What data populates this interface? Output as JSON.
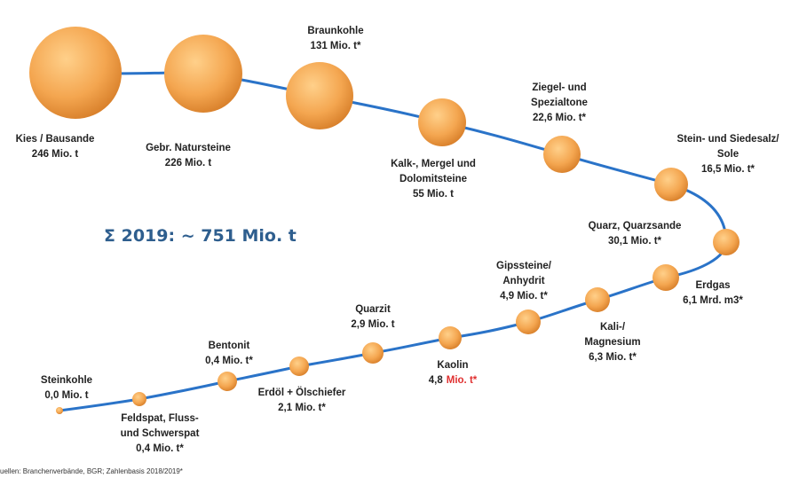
{
  "total": "Σ 2019: ~ 751 Mio. t",
  "source": "uellen: Branchenverbände, BGR; Zahlenbasis 2018/2019*",
  "nodes": [
    {
      "lines": [
        "Kies / Bausande",
        "246 Mio. t"
      ]
    },
    {
      "lines": [
        "Gebr. Natursteine",
        "226 Mio. t"
      ]
    },
    {
      "lines": [
        "Braunkohle",
        "131 Mio. t*"
      ]
    },
    {
      "lines": [
        "Kalk-, Mergel und",
        "Dolomitsteine",
        "55 Mio. t"
      ]
    },
    {
      "lines": [
        "Ziegel- und",
        "Spezialtone",
        "22,6 Mio. t*"
      ]
    },
    {
      "lines": [
        "Stein- und Siedesalz/",
        "Sole",
        "16,5 Mio. t*"
      ]
    },
    {
      "lines": [
        "Quarz, Quarzsande",
        "30,1 Mio. t*"
      ]
    },
    {
      "lines": [
        "Erdgas",
        "6,1 Mrd. m3*"
      ]
    },
    {
      "lines": [
        "Kali-/",
        "Magnesium",
        "6,3 Mio. t*"
      ]
    },
    {
      "lines": [
        "Gipssteine/",
        "Anhydrit",
        "4,9 Mio. t*"
      ]
    },
    {
      "lines": [
        "Kaolin"
      ],
      "amount": "4,8",
      "unit": "Mio. t*"
    },
    {
      "lines": [
        "Quarzit",
        "2,9 Mio. t"
      ]
    },
    {
      "lines": [
        "Erdöl + Ölschiefer",
        "2,1 Mio. t*"
      ]
    },
    {
      "lines": [
        "Bentonit",
        "0,4 Mio. t*"
      ]
    },
    {
      "lines": [
        "Feldspat, Fluss-",
        "und Schwerspat",
        "0,4 Mio. t*"
      ]
    },
    {
      "lines": [
        "Steinkohle",
        "0,0 Mio. t"
      ]
    }
  ]
}
